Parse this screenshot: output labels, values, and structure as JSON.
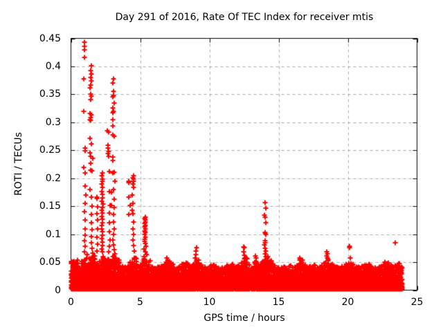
{
  "chart_data": {
    "type": "scatter",
    "title": "Day 291 of 2016, Rate Of TEC Index for receiver mtis",
    "xlabel": "GPS time / hours",
    "ylabel": "ROTI / TECUs",
    "xlim": [
      0,
      25
    ],
    "ylim": [
      0,
      0.45
    ],
    "xticks": [
      0,
      5,
      10,
      15,
      20,
      25
    ],
    "xtick_labels": [
      "0",
      "5",
      "10",
      "15",
      "20",
      "25"
    ],
    "yticks": [
      0,
      0.05,
      0.1,
      0.15,
      0.2,
      0.25,
      0.3,
      0.35,
      0.4,
      0.45
    ],
    "ytick_labels": [
      "0",
      "0.05",
      "0.1",
      "0.15",
      "0.2",
      "0.25",
      "0.3",
      "0.35",
      "0.4",
      "0.45"
    ],
    "grid": {
      "show": true,
      "style": "dashed",
      "color": "#a8a8a8",
      "dash": [
        4,
        4
      ]
    },
    "frame_color": "#000000",
    "marker": {
      "shape": "plus",
      "color": "#ff0000",
      "size": 7,
      "stroke": 2
    },
    "legend": "none",
    "series": [
      {
        "name": "ROTI",
        "spike_points": [
          [
            0.95,
            0.443
          ],
          [
            0.95,
            0.436
          ],
          [
            0.95,
            0.43
          ],
          [
            0.96,
            0.416
          ],
          [
            0.93,
            0.378
          ],
          [
            0.94,
            0.32
          ],
          [
            0.9,
            0.22
          ],
          [
            1.02,
            0.254
          ],
          [
            1.0,
            0.249
          ],
          [
            1.03,
            0.21
          ],
          [
            1.02,
            0.186
          ],
          [
            1.05,
            0.17
          ],
          [
            1.0,
            0.155
          ],
          [
            0.98,
            0.14
          ],
          [
            1.0,
            0.125
          ],
          [
            1.02,
            0.11
          ],
          [
            1.0,
            0.098
          ],
          [
            0.99,
            0.088
          ],
          [
            1.01,
            0.078
          ],
          [
            0.97,
            0.068
          ],
          [
            1.45,
            0.401
          ],
          [
            1.42,
            0.392
          ],
          [
            1.45,
            0.386
          ],
          [
            1.42,
            0.38
          ],
          [
            1.45,
            0.374
          ],
          [
            1.4,
            0.367
          ],
          [
            1.38,
            0.361
          ],
          [
            1.4,
            0.351
          ],
          [
            1.45,
            0.347
          ],
          [
            1.42,
            0.34
          ],
          [
            1.35,
            0.316
          ],
          [
            1.45,
            0.314
          ],
          [
            1.4,
            0.308
          ],
          [
            1.35,
            0.305
          ],
          [
            1.42,
            0.304
          ],
          [
            1.35,
            0.271
          ],
          [
            1.48,
            0.262
          ],
          [
            1.35,
            0.245
          ],
          [
            1.43,
            0.239
          ],
          [
            1.57,
            0.236
          ],
          [
            1.4,
            0.227
          ],
          [
            1.43,
            0.214
          ],
          [
            1.5,
            0.213
          ],
          [
            1.35,
            0.18
          ],
          [
            1.48,
            0.166
          ],
          [
            1.5,
            0.15
          ],
          [
            1.45,
            0.135
          ],
          [
            1.47,
            0.12
          ],
          [
            1.5,
            0.108
          ],
          [
            1.45,
            0.096
          ],
          [
            1.48,
            0.085
          ],
          [
            1.52,
            0.075
          ],
          [
            1.55,
            0.066
          ],
          [
            1.85,
            0.166
          ],
          [
            1.86,
            0.164
          ],
          [
            1.93,
            0.149
          ],
          [
            1.85,
            0.137
          ],
          [
            1.93,
            0.126
          ],
          [
            1.9,
            0.11
          ],
          [
            1.88,
            0.095
          ],
          [
            1.92,
            0.082
          ],
          [
            1.87,
            0.07
          ],
          [
            2.25,
            0.21
          ],
          [
            2.22,
            0.205
          ],
          [
            2.25,
            0.199
          ],
          [
            2.28,
            0.195
          ],
          [
            2.22,
            0.19
          ],
          [
            2.25,
            0.183
          ],
          [
            2.2,
            0.176
          ],
          [
            2.28,
            0.171
          ],
          [
            2.25,
            0.165
          ],
          [
            2.22,
            0.159
          ],
          [
            2.3,
            0.154
          ],
          [
            2.25,
            0.148
          ],
          [
            2.24,
            0.143
          ],
          [
            2.27,
            0.138
          ],
          [
            2.22,
            0.132
          ],
          [
            2.25,
            0.127
          ],
          [
            2.28,
            0.121
          ],
          [
            2.24,
            0.115
          ],
          [
            2.22,
            0.11
          ],
          [
            2.26,
            0.104
          ],
          [
            2.25,
            0.098
          ],
          [
            2.23,
            0.092
          ],
          [
            2.27,
            0.086
          ],
          [
            2.25,
            0.08
          ],
          [
            2.24,
            0.074
          ],
          [
            2.26,
            0.068
          ],
          [
            2.6,
            0.285
          ],
          [
            2.72,
            0.283
          ],
          [
            2.65,
            0.259
          ],
          [
            2.65,
            0.254
          ],
          [
            2.7,
            0.248
          ],
          [
            2.65,
            0.244
          ],
          [
            2.72,
            0.239
          ],
          [
            2.77,
            0.212
          ],
          [
            2.77,
            0.176
          ],
          [
            2.81,
            0.152
          ],
          [
            2.79,
            0.138
          ],
          [
            2.75,
            0.12
          ],
          [
            2.78,
            0.105
          ],
          [
            2.8,
            0.09
          ],
          [
            2.76,
            0.078
          ],
          [
            2.74,
            0.068
          ],
          [
            3.05,
            0.378
          ],
          [
            3.03,
            0.37
          ],
          [
            3.05,
            0.355
          ],
          [
            3.07,
            0.348
          ],
          [
            3.04,
            0.345
          ],
          [
            3.1,
            0.335
          ],
          [
            3.03,
            0.326
          ],
          [
            3.05,
            0.32
          ],
          [
            3.04,
            0.317
          ],
          [
            3.0,
            0.305
          ],
          [
            3.02,
            0.293
          ],
          [
            3.0,
            0.277
          ],
          [
            3.1,
            0.275
          ],
          [
            3.0,
            0.238
          ],
          [
            3.0,
            0.232
          ],
          [
            3.1,
            0.211
          ],
          [
            3.0,
            0.21
          ],
          [
            3.15,
            0.195
          ],
          [
            3.05,
            0.18
          ],
          [
            2.93,
            0.175
          ],
          [
            3.1,
            0.162
          ],
          [
            2.93,
            0.151
          ],
          [
            3.1,
            0.148
          ],
          [
            3.05,
            0.135
          ],
          [
            3.08,
            0.122
          ],
          [
            3.12,
            0.11
          ],
          [
            3.05,
            0.1
          ],
          [
            3.03,
            0.09
          ],
          [
            3.07,
            0.081
          ],
          [
            3.1,
            0.072
          ],
          [
            3.15,
            0.065
          ],
          [
            4.18,
            0.195
          ],
          [
            4.18,
            0.192
          ],
          [
            4.18,
            0.166
          ],
          [
            4.27,
            0.152
          ],
          [
            4.18,
            0.135
          ],
          [
            4.5,
            0.205
          ],
          [
            4.48,
            0.201
          ],
          [
            4.5,
            0.198
          ],
          [
            4.52,
            0.195
          ],
          [
            4.47,
            0.19
          ],
          [
            4.5,
            0.184
          ],
          [
            4.42,
            0.17
          ],
          [
            4.45,
            0.155
          ],
          [
            4.42,
            0.143
          ],
          [
            4.46,
            0.137
          ],
          [
            4.5,
            0.122
          ],
          [
            4.48,
            0.11
          ],
          [
            4.52,
            0.1
          ],
          [
            4.45,
            0.09
          ],
          [
            4.5,
            0.08
          ],
          [
            4.55,
            0.07
          ],
          [
            5.35,
            0.13
          ],
          [
            5.32,
            0.128
          ],
          [
            5.35,
            0.125
          ],
          [
            5.38,
            0.122
          ],
          [
            5.33,
            0.119
          ],
          [
            5.36,
            0.116
          ],
          [
            5.32,
            0.113
          ],
          [
            5.35,
            0.11
          ],
          [
            5.3,
            0.106
          ],
          [
            5.38,
            0.103
          ],
          [
            5.34,
            0.099
          ],
          [
            5.36,
            0.095
          ],
          [
            5.3,
            0.091
          ],
          [
            5.33,
            0.087
          ],
          [
            5.37,
            0.083
          ],
          [
            5.4,
            0.078
          ],
          [
            5.28,
            0.073
          ],
          [
            5.35,
            0.068
          ],
          [
            5.45,
            0.064
          ],
          [
            6.9,
            0.058
          ],
          [
            6.95,
            0.054
          ],
          [
            9.05,
            0.076
          ],
          [
            9.0,
            0.07
          ],
          [
            9.03,
            0.064
          ],
          [
            8.98,
            0.058
          ],
          [
            12.45,
            0.077
          ],
          [
            12.52,
            0.076
          ],
          [
            12.48,
            0.069
          ],
          [
            12.5,
            0.063
          ],
          [
            12.55,
            0.058
          ],
          [
            13.3,
            0.061
          ],
          [
            13.35,
            0.058
          ],
          [
            14.02,
            0.156
          ],
          [
            14.05,
            0.147
          ],
          [
            13.97,
            0.134
          ],
          [
            14.03,
            0.131
          ],
          [
            14.05,
            0.12
          ],
          [
            14.0,
            0.103
          ],
          [
            14.03,
            0.102
          ],
          [
            14.06,
            0.1
          ],
          [
            14.0,
            0.089
          ],
          [
            14.04,
            0.085
          ],
          [
            13.98,
            0.081
          ],
          [
            14.02,
            0.075
          ],
          [
            14.05,
            0.07
          ],
          [
            14.0,
            0.065
          ],
          [
            14.08,
            0.06
          ],
          [
            16.5,
            0.058
          ],
          [
            16.55,
            0.055
          ],
          [
            18.45,
            0.069
          ],
          [
            18.5,
            0.065
          ],
          [
            18.48,
            0.061
          ],
          [
            18.52,
            0.057
          ],
          [
            18.55,
            0.053
          ],
          [
            20.1,
            0.078
          ],
          [
            20.12,
            0.076
          ],
          [
            20.15,
            0.058
          ],
          [
            23.42,
            0.085
          ]
        ],
        "baseline_band": {
          "description": "dense noise band of plus markers hugging zero; tops array gives the ragged upper envelope of the band per 0.25 h bin",
          "start": 0,
          "step": 0.25,
          "hour_end": 23.93,
          "bottom": 0.002,
          "points_per_bin": 80,
          "skew": 2.2,
          "seed": 2916,
          "tops": [
            0.052,
            0.055,
            0.044,
            0.052,
            0.065,
            0.058,
            0.062,
            0.048,
            0.052,
            0.062,
            0.055,
            0.052,
            0.062,
            0.055,
            0.044,
            0.042,
            0.046,
            0.052,
            0.058,
            0.046,
            0.046,
            0.06,
            0.052,
            0.042,
            0.04,
            0.042,
            0.044,
            0.05,
            0.052,
            0.046,
            0.04,
            0.043,
            0.047,
            0.05,
            0.043,
            0.046,
            0.054,
            0.047,
            0.045,
            0.04,
            0.044,
            0.047,
            0.042,
            0.04,
            0.042,
            0.044,
            0.047,
            0.042,
            0.044,
            0.05,
            0.06,
            0.049,
            0.044,
            0.052,
            0.047,
            0.052,
            0.062,
            0.053,
            0.044,
            0.042,
            0.044,
            0.042,
            0.04,
            0.044,
            0.042,
            0.047,
            0.055,
            0.047,
            0.042,
            0.044,
            0.047,
            0.042,
            0.044,
            0.049,
            0.056,
            0.047,
            0.042,
            0.04,
            0.044,
            0.047,
            0.049,
            0.047,
            0.044,
            0.042,
            0.044,
            0.047,
            0.047,
            0.042,
            0.04,
            0.044,
            0.051,
            0.049,
            0.047,
            0.044,
            0.049,
            0.042
          ]
        }
      }
    ]
  }
}
